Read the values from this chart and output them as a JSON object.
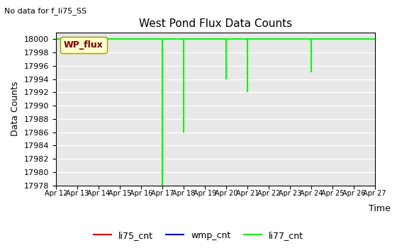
{
  "title": "West Pond Flux Data Counts",
  "note": "No data for f_li75_SS",
  "ylabel": "Data Counts",
  "xlabel": "Time",
  "ylim": [
    17978,
    18001
  ],
  "yticks": [
    17978,
    17980,
    17982,
    17984,
    17986,
    17988,
    17990,
    17992,
    17994,
    17996,
    17998,
    18000
  ],
  "bg_color": "#e8e8e8",
  "grid_color": "#ffffff",
  "legend_box_label": "WP_flux",
  "legend_box_facecolor": "#ffffcc",
  "legend_box_edgecolor": "#999900",
  "legend_box_textcolor": "#880000",
  "li77_color": "#00ff00",
  "li75_color": "#ff0000",
  "wmp_color": "#0000ff",
  "hline_y": 18000,
  "hline_xmin": 0,
  "hline_xmax": 15,
  "spikes": [
    {
      "x": 5.0,
      "ymin": 17978,
      "ymax": 18000
    },
    {
      "x": 6.0,
      "ymin": 17986,
      "ymax": 18000
    },
    {
      "x": 8.0,
      "ymin": 17994,
      "ymax": 18000
    },
    {
      "x": 9.0,
      "ymin": 17992,
      "ymax": 18000
    },
    {
      "x": 12.0,
      "ymin": 17995,
      "ymax": 18000
    }
  ],
  "xtick_labels": [
    "Apr 12",
    "Apr 13",
    "Apr 14",
    "Apr 15",
    "Apr 16",
    "Apr 17",
    "Apr 18",
    "Apr 19",
    "Apr 20",
    "Apr 21",
    "Apr 22",
    "Apr 23",
    "Apr 24",
    "Apr 25",
    "Apr 26",
    "Apr 27"
  ],
  "xtick_days": [
    0,
    1,
    2,
    3,
    4,
    5,
    6,
    7,
    8,
    9,
    10,
    11,
    12,
    13,
    14,
    15
  ],
  "figsize": [
    5.6,
    3.5
  ],
  "dpi": 100
}
